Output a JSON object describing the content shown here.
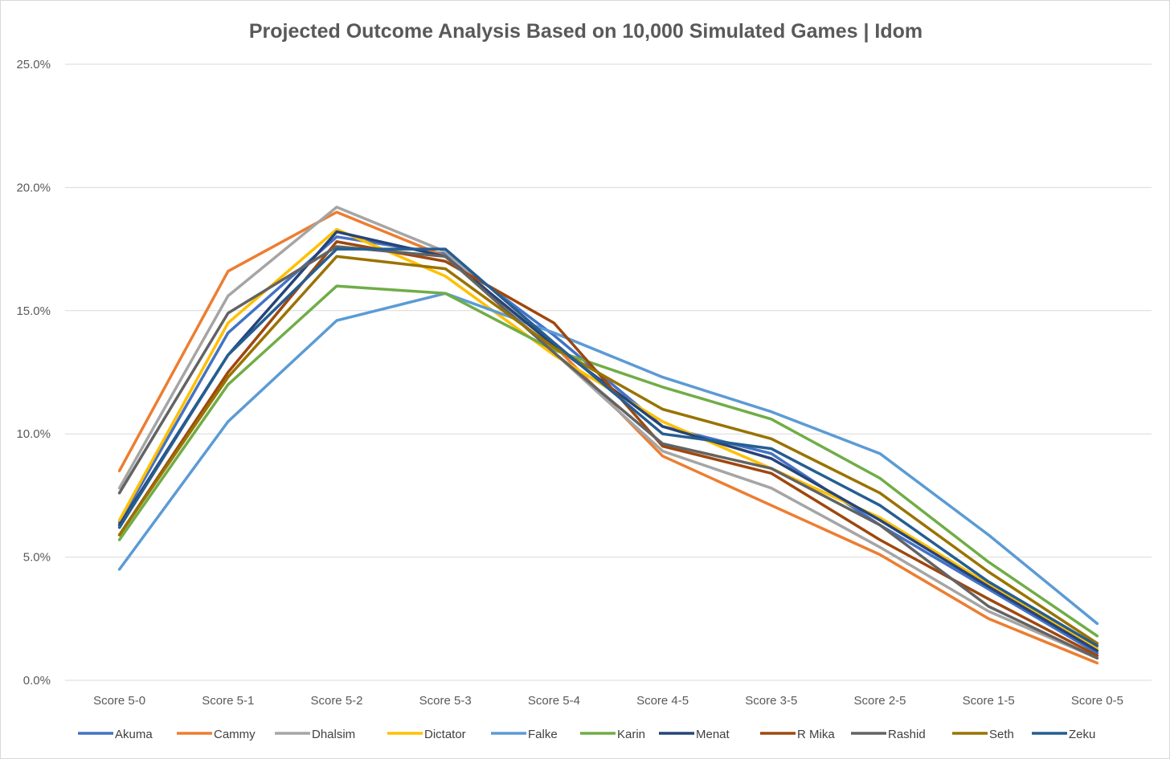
{
  "chart_data": {
    "type": "line",
    "title": "Projected Outcome Analysis Based on 10,000 Simulated Games | Idom",
    "xlabel": "",
    "ylabel": "",
    "ylim": [
      0,
      25
    ],
    "yticks": [
      "0.0%",
      "5.0%",
      "10.0%",
      "15.0%",
      "20.0%",
      "25.0%"
    ],
    "grid": true,
    "legend": "bottom",
    "categories": [
      "Score 5-0",
      "Score 5-1",
      "Score 5-2",
      "Score 5-3",
      "Score 5-4",
      "Score 4-5",
      "Score 3-5",
      "Score 2-5",
      "Score 1-5",
      "Score 0-5"
    ],
    "series": [
      {
        "name": "Akuma",
        "color": "#4472C4",
        "values": [
          6.4,
          14.1,
          18.0,
          17.3,
          14.0,
          10.3,
          9.2,
          6.3,
          3.7,
          1.1
        ]
      },
      {
        "name": "Cammy",
        "color": "#ED7D31",
        "values": [
          8.5,
          16.6,
          19.0,
          17.2,
          13.6,
          9.1,
          7.1,
          5.1,
          2.5,
          0.7
        ]
      },
      {
        "name": "Dhalsim",
        "color": "#A5A5A5",
        "values": [
          7.8,
          15.6,
          19.2,
          17.4,
          13.3,
          9.3,
          7.8,
          5.4,
          2.8,
          0.9
        ]
      },
      {
        "name": "Dictator",
        "color": "#FFC000",
        "values": [
          6.5,
          14.5,
          18.3,
          16.4,
          13.2,
          10.5,
          8.6,
          6.6,
          3.9,
          1.3
        ]
      },
      {
        "name": "Falke",
        "color": "#5B9BD5",
        "values": [
          4.5,
          10.5,
          14.6,
          15.7,
          14.1,
          12.3,
          10.9,
          9.2,
          5.9,
          2.3
        ]
      },
      {
        "name": "Karin",
        "color": "#70AD47",
        "values": [
          5.7,
          12.0,
          16.0,
          15.7,
          13.4,
          11.9,
          10.6,
          8.2,
          4.8,
          1.8
        ]
      },
      {
        "name": "Menat",
        "color": "#264478",
        "values": [
          6.3,
          13.2,
          18.2,
          17.2,
          13.6,
          10.3,
          9.0,
          6.5,
          3.8,
          1.2
        ]
      },
      {
        "name": "R Mika",
        "color": "#9E480E",
        "values": [
          5.9,
          12.5,
          17.8,
          17.0,
          14.5,
          9.5,
          8.4,
          5.7,
          3.3,
          1.0
        ]
      },
      {
        "name": "Rashid",
        "color": "#636363",
        "values": [
          7.6,
          14.9,
          17.6,
          17.2,
          13.3,
          9.6,
          8.6,
          6.3,
          3.0,
          0.9
        ]
      },
      {
        "name": "Seth",
        "color": "#997300",
        "values": [
          5.9,
          12.3,
          17.2,
          16.7,
          13.5,
          11.0,
          9.8,
          7.6,
          4.4,
          1.5
        ]
      },
      {
        "name": "Zeku",
        "color": "#255E91",
        "values": [
          6.2,
          13.2,
          17.5,
          17.5,
          13.7,
          10.0,
          9.4,
          7.1,
          4.0,
          1.4
        ]
      }
    ]
  }
}
